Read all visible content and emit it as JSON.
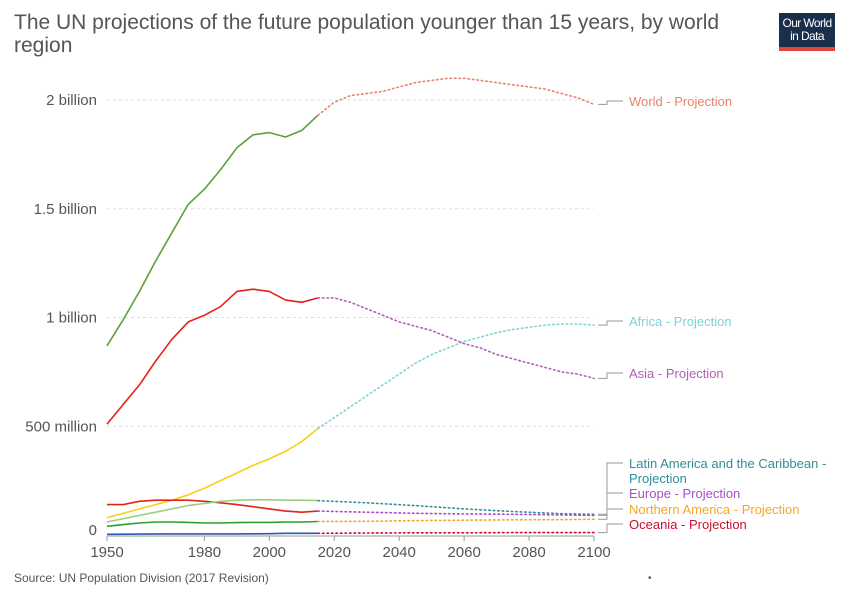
{
  "title": "The UN projections of the future population younger than 15 years, by world region",
  "logo": {
    "line1": "Our World",
    "line2": "in Data",
    "colors": {
      "background": "#1a2f4b",
      "accent": "#e0463c"
    }
  },
  "source": "Source: UN Population Division (2017 Revision)",
  "footer_mark": "•",
  "chart_data": {
    "type": "line",
    "title": "The UN projections of the future population younger than 15 years, by world region",
    "xlim": [
      1950,
      2100
    ],
    "ylim": [
      0,
      2000000000
    ],
    "x_ticks": [
      1950,
      1980,
      2000,
      2020,
      2040,
      2060,
      2080,
      2100
    ],
    "y_ticks": [
      {
        "value": 0,
        "label": "0"
      },
      {
        "value": 500000000,
        "label": "500 million"
      },
      {
        "value": 1000000000,
        "label": "1 billion"
      },
      {
        "value": 1500000000,
        "label": "1.5 billion"
      },
      {
        "value": 2000000000,
        "label": "2 billion"
      }
    ],
    "grid": "horizontal dashed",
    "legend_placement": "right, labels at line ends",
    "historical_until": 2015,
    "historical_style": "solid",
    "projection_style": "dotted",
    "historical_series": [
      {
        "color": "#5da234",
        "x": [
          1950,
          1955,
          1960,
          1965,
          1970,
          1975,
          1980,
          1985,
          1990,
          1995,
          2000,
          2005,
          2010,
          2015
        ],
        "y": [
          870000000,
          990000000,
          1120000000,
          1260000000,
          1390000000,
          1520000000,
          1590000000,
          1680000000,
          1780000000,
          1840000000,
          1850000000,
          1830000000,
          1860000000,
          1930000000
        ]
      },
      {
        "color": "#e2231a",
        "x": [
          1950,
          1955,
          1960,
          1965,
          1970,
          1975,
          1980,
          1985,
          1990,
          1995,
          2000,
          2005,
          2010,
          2015
        ],
        "y": [
          510000000,
          600000000,
          690000000,
          800000000,
          900000000,
          980000000,
          1010000000,
          1050000000,
          1120000000,
          1130000000,
          1120000000,
          1080000000,
          1070000000,
          1090000000
        ]
      },
      {
        "color": "#f5d11a",
        "x": [
          1950,
          1955,
          1960,
          1965,
          1970,
          1975,
          1980,
          1985,
          1990,
          1995,
          2000,
          2005,
          2010,
          2015
        ],
        "y": [
          80000000,
          100000000,
          120000000,
          140000000,
          160000000,
          185000000,
          215000000,
          250000000,
          285000000,
          320000000,
          350000000,
          385000000,
          430000000,
          490000000
        ]
      },
      {
        "color": "#e2231a",
        "x": [
          1950,
          1955,
          1960,
          1965,
          1970,
          1975,
          1980,
          1985,
          1990,
          1995,
          2000,
          2005,
          2010,
          2015
        ],
        "y": [
          140000000,
          140000000,
          155000000,
          160000000,
          160000000,
          160000000,
          155000000,
          148000000,
          140000000,
          130000000,
          120000000,
          110000000,
          105000000,
          110000000
        ]
      },
      {
        "color": "#9ccf7d",
        "x": [
          1950,
          1955,
          1960,
          1965,
          1970,
          1975,
          1980,
          1985,
          1990,
          1995,
          2000,
          2005,
          2010,
          2015
        ],
        "y": [
          60000000,
          75000000,
          90000000,
          105000000,
          120000000,
          135000000,
          145000000,
          155000000,
          160000000,
          162000000,
          162000000,
          160000000,
          160000000,
          158000000
        ]
      },
      {
        "color": "#2ca02c",
        "x": [
          1950,
          1955,
          1960,
          1965,
          1970,
          1975,
          1980,
          1985,
          1990,
          1995,
          2000,
          2005,
          2010,
          2015
        ],
        "y": [
          40000000,
          48000000,
          55000000,
          60000000,
          60000000,
          58000000,
          55000000,
          55000000,
          57000000,
          58000000,
          58000000,
          60000000,
          60000000,
          62000000
        ]
      },
      {
        "color": "#2b5ca8",
        "x": [
          1950,
          1960,
          1970,
          1980,
          1990,
          2000,
          2005,
          2010,
          2015
        ],
        "y": [
          3000000,
          4000000,
          5000000,
          5000000,
          5000000,
          6000000,
          8000000,
          8000000,
          8000000
        ]
      }
    ],
    "series": [
      {
        "name": "World - Projection",
        "color": "#e8836a",
        "x": [
          2015,
          2020,
          2025,
          2030,
          2035,
          2040,
          2045,
          2050,
          2055,
          2060,
          2065,
          2070,
          2075,
          2080,
          2085,
          2090,
          2095,
          2100
        ],
        "y": [
          1930000000,
          1990000000,
          2020000000,
          2030000000,
          2040000000,
          2060000000,
          2080000000,
          2090000000,
          2100000000,
          2100000000,
          2090000000,
          2080000000,
          2070000000,
          2060000000,
          2050000000,
          2030000000,
          2010000000,
          1980000000
        ]
      },
      {
        "name": "Africa - Projection",
        "color": "#7ed3d8",
        "x": [
          2015,
          2020,
          2025,
          2030,
          2035,
          2040,
          2045,
          2050,
          2055,
          2060,
          2065,
          2070,
          2075,
          2080,
          2085,
          2090,
          2095,
          2100
        ],
        "y": [
          490000000,
          540000000,
          590000000,
          640000000,
          690000000,
          740000000,
          790000000,
          830000000,
          860000000,
          890000000,
          910000000,
          930000000,
          945000000,
          955000000,
          965000000,
          970000000,
          970000000,
          965000000
        ]
      },
      {
        "name": "Asia - Projection",
        "color": "#b15fb4",
        "x": [
          2015,
          2020,
          2025,
          2030,
          2035,
          2040,
          2045,
          2050,
          2055,
          2060,
          2065,
          2070,
          2075,
          2080,
          2085,
          2090,
          2095,
          2100
        ],
        "y": [
          1090000000,
          1090000000,
          1070000000,
          1040000000,
          1010000000,
          980000000,
          960000000,
          940000000,
          910000000,
          880000000,
          860000000,
          830000000,
          810000000,
          790000000,
          770000000,
          750000000,
          740000000,
          720000000
        ]
      },
      {
        "name": "Latin America and the Caribbean - Projection",
        "color": "#2d8f94",
        "x": [
          2015,
          2030,
          2045,
          2060,
          2075,
          2090,
          2100
        ],
        "y": [
          158000000,
          148000000,
          135000000,
          120000000,
          108000000,
          98000000,
          95000000
        ]
      },
      {
        "name": "Europe - Projection",
        "color": "#a54ec6",
        "x": [
          2015,
          2030,
          2045,
          2060,
          2075,
          2090,
          2100
        ],
        "y": [
          110000000,
          105000000,
          100000000,
          97000000,
          95000000,
          92000000,
          90000000
        ]
      },
      {
        "name": "Northern America - Projection",
        "color": "#f5a623",
        "x": [
          2015,
          2030,
          2045,
          2060,
          2075,
          2090,
          2100
        ],
        "y": [
          62000000,
          63000000,
          66000000,
          68000000,
          70000000,
          71000000,
          72000000
        ]
      },
      {
        "name": "Oceania - Projection",
        "color": "#c8102e",
        "x": [
          2015,
          2030,
          2045,
          2060,
          2075,
          2090,
          2100
        ],
        "y": [
          8000000,
          9000000,
          10000000,
          10000000,
          11000000,
          11000000,
          11000000
        ]
      }
    ]
  }
}
